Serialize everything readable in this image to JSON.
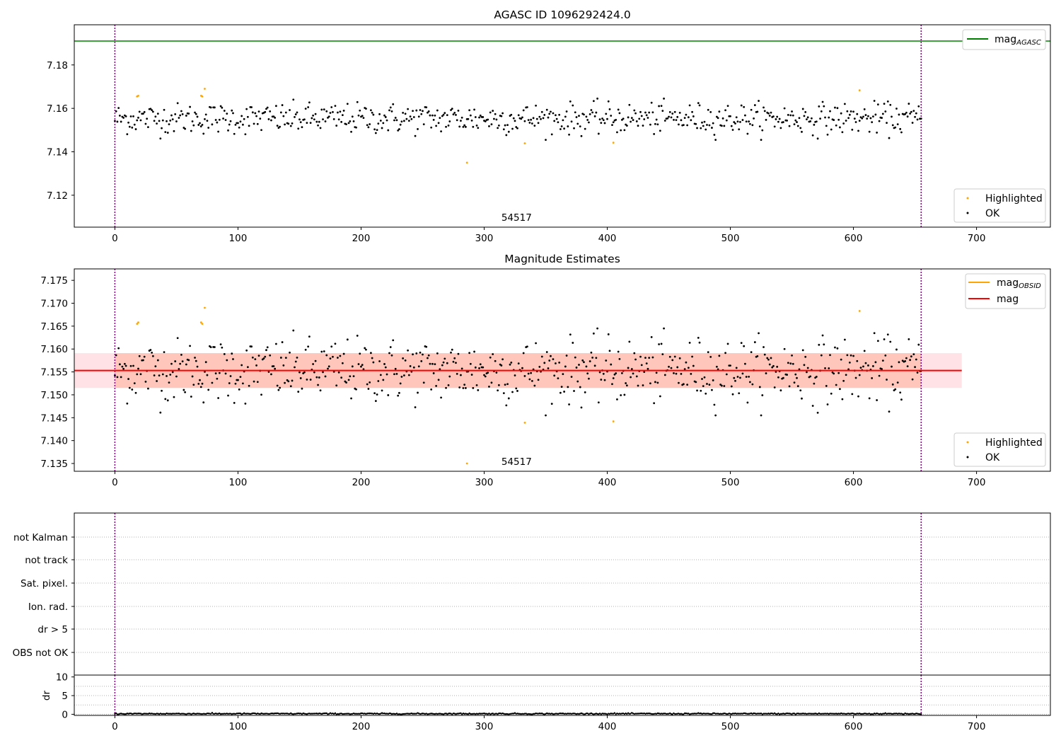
{
  "chart_data": [
    {
      "type": "scatter",
      "title": "AGASC ID 1096292424.0",
      "xlim": [
        -33,
        760
      ],
      "ylim": [
        7.1053,
        7.1985
      ],
      "yticks": [
        "7.12",
        "7.14",
        "7.16",
        "7.18"
      ],
      "xticks": [
        "0",
        "100",
        "200",
        "300",
        "400",
        "500",
        "600",
        "700"
      ],
      "obsid_label": "54517",
      "obsid_label_x": 314,
      "obsid_bounds": [
        0,
        655
      ],
      "hline_mag_agasc": 7.191,
      "legend_upper": {
        "name": "mag",
        "sub": "AGASC",
        "color": "#008000"
      },
      "legend_lower": [
        {
          "name": "Highlighted",
          "color": "#ffa500"
        },
        {
          "name": "OK",
          "color": "#000000"
        }
      ],
      "series": [
        {
          "name": "OK",
          "color": "#000000",
          "mean": 7.1553,
          "sd": 0.0035,
          "n": 656,
          "x_range": [
            0,
            655
          ]
        },
        {
          "name": "Highlighted",
          "color": "#ffa500",
          "x": [
            18,
            19,
            70,
            71,
            73,
            286,
            333,
            405,
            605
          ],
          "y": [
            7.1655,
            7.1658,
            7.1658,
            7.1655,
            7.169,
            7.135,
            7.1439,
            7.1442,
            7.1683
          ]
        }
      ]
    },
    {
      "type": "scatter",
      "title": "Magnitude Estimates",
      "xlim": [
        -33,
        760
      ],
      "ylim": [
        7.1333,
        7.1775
      ],
      "yticks": [
        "7.135",
        "7.140",
        "7.145",
        "7.150",
        "7.155",
        "7.160",
        "7.165",
        "7.170",
        "7.175"
      ],
      "xticks": [
        "0",
        "100",
        "200",
        "300",
        "400",
        "500",
        "600",
        "700"
      ],
      "obsid_label": "54517",
      "obsid_label_x": 314,
      "obsid_bounds": [
        0,
        655
      ],
      "mag_line": {
        "value": 7.1553,
        "x_range": [
          -33,
          688
        ],
        "color": "#ff0000"
      },
      "band_outer": {
        "lo": 7.1515,
        "hi": 7.1591,
        "x_range": [
          -33,
          688
        ],
        "color": "#ffb6c1"
      },
      "band_inner": {
        "lo": 7.1515,
        "hi": 7.1591,
        "x_range": [
          0,
          655
        ],
        "color": "#ffa07a"
      },
      "legend_upper": [
        {
          "name": "mag",
          "sub": "OBSID",
          "color": "#ffa500"
        },
        {
          "name": "mag",
          "sub": "",
          "color": "#ff0000"
        }
      ],
      "legend_lower": [
        {
          "name": "Highlighted",
          "color": "#ffa500"
        },
        {
          "name": "OK",
          "color": "#000000"
        }
      ]
    },
    {
      "type": "scatter",
      "title": "",
      "xlim": [
        -33,
        760
      ],
      "categories": [
        "not Kalman",
        "not track",
        "Sat. pixel.",
        "Ion. rad.",
        "dr > 5",
        "OBS not OK"
      ],
      "obsid_bounds": [
        0,
        655
      ]
    },
    {
      "type": "scatter",
      "title": "",
      "ylabel": "dr",
      "xlim": [
        -33,
        760
      ],
      "ylim": [
        -0.3,
        10.5
      ],
      "yticks": [
        "0",
        "5",
        "10"
      ],
      "xticks": [
        "0",
        "100",
        "200",
        "300",
        "400",
        "500",
        "600",
        "700"
      ],
      "obsid_bounds": [
        0,
        655
      ],
      "series": [
        {
          "name": "dr",
          "color": "#000000",
          "mean": 0.15,
          "sd": 0.08,
          "n": 656
        }
      ]
    }
  ]
}
